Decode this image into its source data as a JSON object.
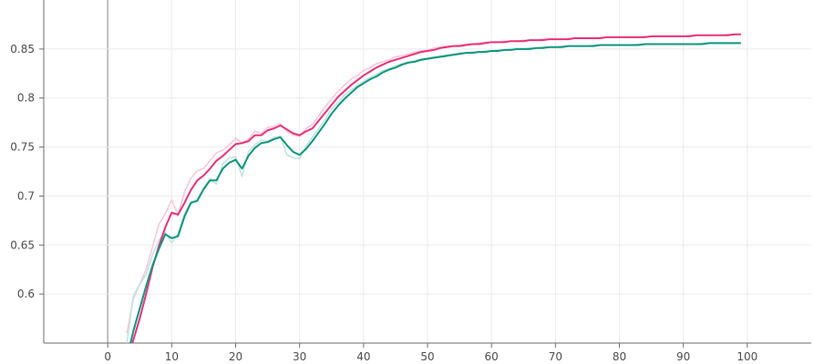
{
  "chart_data": {
    "type": "line",
    "title": "",
    "xlabel": "",
    "ylabel": "",
    "xlim": [
      -10,
      110
    ],
    "ylim": [
      0.55,
      0.9
    ],
    "grid": true,
    "legend": "none",
    "x_ticks": [
      0,
      10,
      20,
      30,
      40,
      50,
      60,
      70,
      80,
      90,
      100
    ],
    "y_ticks": [
      0.6,
      0.65,
      0.7,
      0.75,
      0.8,
      0.85
    ],
    "x_tick_labels": [
      "0",
      "10",
      "20",
      "30",
      "40",
      "50",
      "60",
      "70",
      "80",
      "90",
      "100"
    ],
    "y_tick_labels": [
      "0.6",
      "0.65",
      "0.7",
      "0.75",
      "0.8",
      "0.85"
    ],
    "x": [
      3,
      4,
      5,
      6,
      7,
      8,
      9,
      10,
      11,
      12,
      13,
      14,
      15,
      16,
      17,
      18,
      19,
      20,
      21,
      22,
      23,
      24,
      25,
      26,
      27,
      28,
      29,
      30,
      31,
      32,
      33,
      34,
      35,
      36,
      37,
      38,
      39,
      40,
      41,
      42,
      43,
      44,
      45,
      46,
      47,
      48,
      49,
      50,
      51,
      52,
      53,
      54,
      55,
      56,
      57,
      58,
      59,
      60,
      61,
      62,
      63,
      64,
      65,
      66,
      67,
      68,
      69,
      70,
      71,
      72,
      73,
      74,
      75,
      76,
      77,
      78,
      79,
      80,
      81,
      82,
      83,
      84,
      85,
      86,
      87,
      88,
      89,
      90,
      91,
      92,
      93,
      94,
      95,
      96,
      97,
      98,
      99
    ],
    "series": [
      {
        "color": "#e8327a",
        "raw_color": "#f8c5d9",
        "values": [
          0.535,
          0.553,
          0.575,
          0.6,
          0.627,
          0.649,
          0.668,
          0.683,
          0.681,
          0.693,
          0.706,
          0.716,
          0.721,
          0.728,
          0.736,
          0.741,
          0.747,
          0.753,
          0.754,
          0.756,
          0.762,
          0.762,
          0.767,
          0.769,
          0.772,
          0.768,
          0.764,
          0.762,
          0.766,
          0.769,
          0.777,
          0.785,
          0.793,
          0.801,
          0.807,
          0.813,
          0.818,
          0.823,
          0.827,
          0.831,
          0.834,
          0.837,
          0.839,
          0.841,
          0.843,
          0.845,
          0.847,
          0.848,
          0.849,
          0.851,
          0.852,
          0.853,
          0.853,
          0.854,
          0.855,
          0.855,
          0.856,
          0.857,
          0.857,
          0.857,
          0.858,
          0.858,
          0.858,
          0.859,
          0.859,
          0.859,
          0.86,
          0.86,
          0.86,
          0.86,
          0.861,
          0.861,
          0.861,
          0.861,
          0.861,
          0.862,
          0.862,
          0.862,
          0.862,
          0.862,
          0.862,
          0.862,
          0.863,
          0.863,
          0.863,
          0.863,
          0.863,
          0.863,
          0.863,
          0.864,
          0.864,
          0.864,
          0.864,
          0.864,
          0.864,
          0.865,
          0.865
        ],
        "raw_values": [
          0.56,
          0.595,
          0.61,
          0.625,
          0.648,
          0.671,
          0.682,
          0.696,
          0.681,
          0.704,
          0.718,
          0.726,
          0.728,
          0.736,
          0.744,
          0.747,
          0.752,
          0.759,
          0.754,
          0.758,
          0.766,
          0.764,
          0.77,
          0.771,
          0.774,
          0.766,
          0.762,
          0.761,
          0.769,
          0.773,
          0.782,
          0.791,
          0.799,
          0.807,
          0.813,
          0.819,
          0.823,
          0.828,
          0.831,
          0.835,
          0.837,
          0.839,
          0.842,
          0.843,
          0.845,
          0.847,
          0.848,
          0.849,
          0.851,
          0.852,
          0.853,
          0.853,
          0.854,
          0.855,
          0.855,
          0.856,
          0.857,
          0.857,
          0.857,
          0.858,
          0.858,
          0.858,
          0.859,
          0.859,
          0.859,
          0.86,
          0.86,
          0.86,
          0.86,
          0.861,
          0.861,
          0.861,
          0.861,
          0.861,
          0.862,
          0.862,
          0.862,
          0.862,
          0.862,
          0.862,
          0.862,
          0.863,
          0.863,
          0.863,
          0.863,
          0.863,
          0.863,
          0.863,
          0.864,
          0.864,
          0.864,
          0.864,
          0.864,
          0.864,
          0.865,
          0.865,
          0.865
        ]
      },
      {
        "color": "#0e9580",
        "raw_color": "#bfe3dd",
        "values": [
          0.535,
          0.562,
          0.585,
          0.608,
          0.629,
          0.646,
          0.661,
          0.657,
          0.659,
          0.679,
          0.693,
          0.695,
          0.707,
          0.716,
          0.716,
          0.728,
          0.734,
          0.737,
          0.728,
          0.741,
          0.749,
          0.754,
          0.755,
          0.758,
          0.76,
          0.752,
          0.745,
          0.742,
          0.748,
          0.756,
          0.765,
          0.774,
          0.784,
          0.792,
          0.799,
          0.805,
          0.811,
          0.815,
          0.819,
          0.822,
          0.826,
          0.829,
          0.831,
          0.834,
          0.836,
          0.837,
          0.839,
          0.84,
          0.841,
          0.842,
          0.843,
          0.844,
          0.845,
          0.846,
          0.846,
          0.847,
          0.847,
          0.848,
          0.848,
          0.849,
          0.849,
          0.85,
          0.85,
          0.85,
          0.851,
          0.851,
          0.852,
          0.852,
          0.852,
          0.853,
          0.853,
          0.853,
          0.853,
          0.853,
          0.854,
          0.854,
          0.854,
          0.854,
          0.854,
          0.854,
          0.854,
          0.855,
          0.855,
          0.855,
          0.855,
          0.855,
          0.855,
          0.855,
          0.855,
          0.855,
          0.855,
          0.856,
          0.856,
          0.856,
          0.856,
          0.856,
          0.856
        ],
        "raw_values": [
          0.55,
          0.598,
          0.61,
          0.62,
          0.64,
          0.655,
          0.663,
          0.652,
          0.662,
          0.682,
          0.694,
          0.697,
          0.708,
          0.718,
          0.712,
          0.733,
          0.739,
          0.74,
          0.72,
          0.745,
          0.752,
          0.757,
          0.756,
          0.76,
          0.761,
          0.742,
          0.739,
          0.738,
          0.751,
          0.76,
          0.769,
          0.778,
          0.789,
          0.795,
          0.803,
          0.808,
          0.813,
          0.817,
          0.821,
          0.824,
          0.828,
          0.83,
          0.833,
          0.835,
          0.837,
          0.838,
          0.84,
          0.841,
          0.842,
          0.843,
          0.844,
          0.845,
          0.846,
          0.846,
          0.847,
          0.847,
          0.848,
          0.848,
          0.849,
          0.849,
          0.85,
          0.85,
          0.85,
          0.851,
          0.851,
          0.852,
          0.852,
          0.852,
          0.853,
          0.853,
          0.853,
          0.853,
          0.853,
          0.854,
          0.854,
          0.854,
          0.854,
          0.854,
          0.854,
          0.854,
          0.855,
          0.855,
          0.855,
          0.855,
          0.855,
          0.855,
          0.855,
          0.855,
          0.855,
          0.855,
          0.856,
          0.856,
          0.856,
          0.856,
          0.856,
          0.856,
          0.856
        ]
      }
    ]
  }
}
